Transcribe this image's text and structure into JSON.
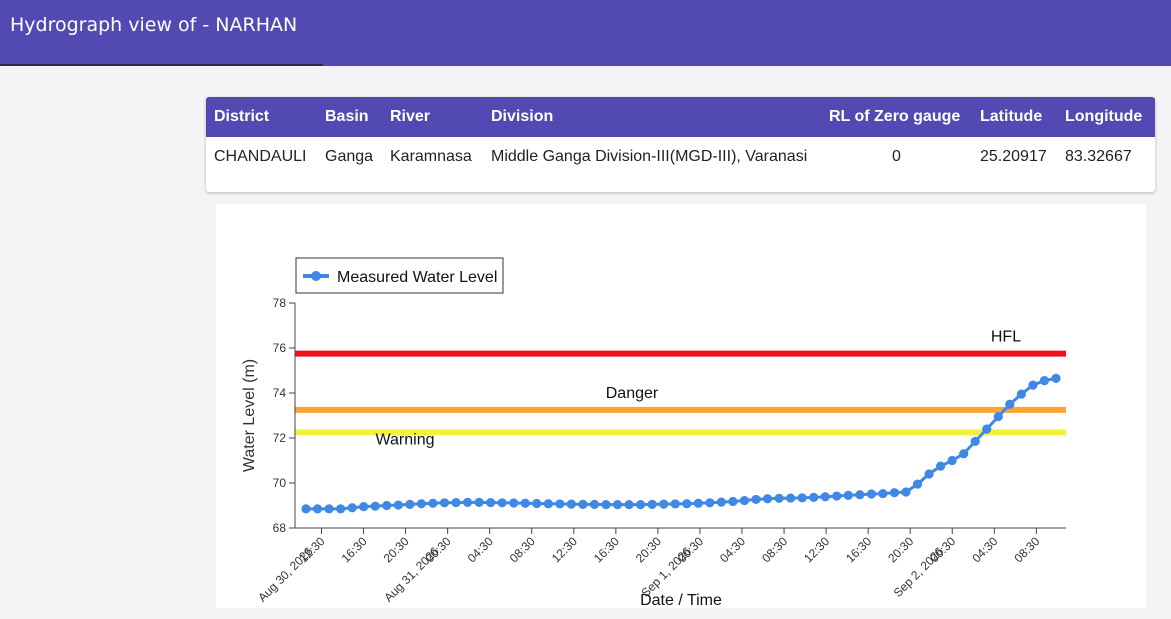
{
  "page": {
    "title": "Hydrograph view of - NARHAN"
  },
  "station_table": {
    "headers": [
      "District",
      "Basin",
      "River",
      "Division",
      "RL of Zero gauge",
      "Latitude",
      "Longitude"
    ],
    "row": [
      "CHANDAULI",
      "Ganga",
      "Karamnasa",
      "Middle Ganga Division-III(MGD-III), Varanasi",
      "0",
      "25.20917",
      "83.32667"
    ]
  },
  "chart_data": {
    "type": "line",
    "xlabel": "Date / Time",
    "ylabel": "Water Level (m)",
    "ylim": [
      68,
      78
    ],
    "yticks": [
      68,
      70,
      72,
      74,
      76,
      78
    ],
    "grid": false,
    "legend": {
      "position": "top-left",
      "entries": [
        "Measured Water Level"
      ]
    },
    "x_ticks": [
      {
        "label": "12:30",
        "sub": "Aug 30, 2026"
      },
      {
        "label": "16:30"
      },
      {
        "label": "20:30"
      },
      {
        "label": "00:30",
        "sub": "Aug 31, 2026"
      },
      {
        "label": "04:30"
      },
      {
        "label": "08:30"
      },
      {
        "label": "12:30"
      },
      {
        "label": "16:30"
      },
      {
        "label": "20:30"
      },
      {
        "label": "00:30",
        "sub": "Sep 1, 2026"
      },
      {
        "label": "04:30"
      },
      {
        "label": "08:30"
      },
      {
        "label": "12:30"
      },
      {
        "label": "16:30"
      },
      {
        "label": "20:30"
      },
      {
        "label": "00:30",
        "sub": "Sep 2, 2026"
      },
      {
        "label": "04:30"
      },
      {
        "label": "08:30"
      }
    ],
    "reference_lines": [
      {
        "name": "HFL",
        "value": 75.75,
        "color": "#f0101e"
      },
      {
        "name": "Danger",
        "value": 73.25,
        "color": "#f7a533"
      },
      {
        "name": "Warning",
        "value": 72.25,
        "color": "#f2f23a"
      }
    ],
    "series": [
      {
        "name": "Measured Water Level",
        "color": "#3f88e6",
        "values": [
          68.85,
          68.85,
          68.85,
          68.85,
          68.9,
          68.95,
          68.97,
          69.0,
          69.02,
          69.05,
          69.08,
          69.1,
          69.12,
          69.13,
          69.14,
          69.14,
          69.13,
          69.12,
          69.11,
          69.1,
          69.09,
          69.08,
          69.07,
          69.06,
          69.05,
          69.05,
          69.04,
          69.04,
          69.04,
          69.04,
          69.05,
          69.06,
          69.07,
          69.08,
          69.1,
          69.12,
          69.15,
          69.18,
          69.22,
          69.27,
          69.3,
          69.32,
          69.33,
          69.34,
          69.36,
          69.39,
          69.42,
          69.45,
          69.48,
          69.51,
          69.53,
          69.57,
          69.6,
          69.95,
          70.4,
          70.75,
          71.0,
          71.3,
          71.85,
          72.4,
          72.95,
          73.5,
          73.95,
          74.35,
          74.55,
          74.65
        ]
      }
    ]
  }
}
